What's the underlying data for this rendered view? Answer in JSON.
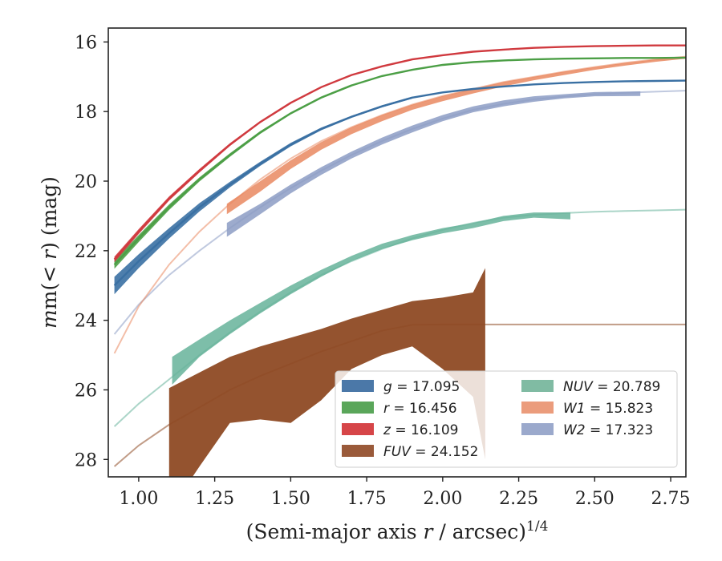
{
  "chart_data": {
    "type": "line",
    "xlabel_main": "(Semi-major axis ",
    "xlabel_var": "r",
    "xlabel_unit": " / arcsec)",
    "xlabel_exp": "1/4",
    "ylabel_left": "m(",
    "ylabel_lt": "<",
    "ylabel_var": "r",
    "ylabel_right": ") (mag)",
    "xlim": [
      0.9,
      2.8
    ],
    "ylim": [
      28.5,
      15.6
    ],
    "y_inverted": true,
    "grid": false,
    "x_ticks": [
      "1.00",
      "1.25",
      "1.50",
      "1.75",
      "2.00",
      "2.25",
      "2.50",
      "2.75"
    ],
    "x_tick_values": [
      1.0,
      1.25,
      1.5,
      1.75,
      2.0,
      2.25,
      2.5,
      2.75
    ],
    "y_ticks": [
      "16",
      "18",
      "20",
      "22",
      "24",
      "26",
      "28"
    ],
    "y_tick_values": [
      16,
      18,
      20,
      22,
      24,
      26,
      28
    ],
    "legend_position": "lower-right",
    "series": [
      {
        "key": "g",
        "var": "g",
        "value": "17.095",
        "color": "#3a70a3",
        "kind": "curve",
        "x": [
          0.92,
          1.0,
          1.1,
          1.2,
          1.3,
          1.4,
          1.5,
          1.6,
          1.7,
          1.8,
          1.9,
          2.0,
          2.1,
          2.2,
          2.3,
          2.4,
          2.5,
          2.6,
          2.7,
          2.8
        ],
        "y": [
          23.0,
          22.3,
          21.5,
          20.75,
          20.1,
          19.5,
          18.95,
          18.5,
          18.15,
          17.85,
          17.6,
          17.45,
          17.35,
          17.28,
          17.22,
          17.18,
          17.15,
          17.13,
          17.12,
          17.11
        ],
        "band_x": [
          0.92,
          1.0,
          1.1,
          1.2,
          1.3,
          1.4,
          1.5,
          1.6,
          1.7,
          1.8,
          1.9
        ],
        "band_half": [
          0.25,
          0.2,
          0.15,
          0.12,
          0.08,
          0.06,
          0.05,
          0.04,
          0.03,
          0.03,
          0.03
        ]
      },
      {
        "key": "r",
        "var": "r",
        "value": "16.456",
        "color": "#4c9f46",
        "kind": "curve",
        "x": [
          0.92,
          1.0,
          1.1,
          1.2,
          1.3,
          1.4,
          1.5,
          1.6,
          1.7,
          1.8,
          1.9,
          2.0,
          2.1,
          2.2,
          2.3,
          2.4,
          2.5,
          2.6,
          2.7,
          2.8
        ],
        "y": [
          22.4,
          21.65,
          20.75,
          19.95,
          19.25,
          18.6,
          18.05,
          17.6,
          17.25,
          16.98,
          16.8,
          16.66,
          16.58,
          16.53,
          16.5,
          16.48,
          16.47,
          16.46,
          16.46,
          16.45
        ],
        "band_x": [
          0.92,
          1.0,
          1.1,
          1.2,
          1.3,
          1.4,
          1.5,
          1.6,
          1.7
        ],
        "band_half": [
          0.12,
          0.1,
          0.08,
          0.06,
          0.05,
          0.04,
          0.03,
          0.03,
          0.03
        ]
      },
      {
        "key": "z",
        "var": "z",
        "value": "16.109",
        "color": "#d03a3f",
        "kind": "curve",
        "x": [
          0.92,
          1.0,
          1.1,
          1.2,
          1.3,
          1.4,
          1.5,
          1.6,
          1.7,
          1.8,
          1.9,
          2.0,
          2.1,
          2.2,
          2.3,
          2.4,
          2.5,
          2.6,
          2.7,
          2.8
        ],
        "y": [
          22.25,
          21.45,
          20.5,
          19.7,
          18.95,
          18.3,
          17.75,
          17.3,
          16.95,
          16.7,
          16.5,
          16.38,
          16.28,
          16.22,
          16.17,
          16.14,
          16.12,
          16.11,
          16.1,
          16.1
        ],
        "band_x": [
          0.92,
          1.0,
          1.1,
          1.2,
          1.3,
          1.4,
          1.5
        ],
        "band_half": [
          0.08,
          0.07,
          0.06,
          0.05,
          0.04,
          0.03,
          0.03
        ]
      },
      {
        "key": "FUV",
        "var": "FUV",
        "value": "24.152",
        "color": "#8e4a24",
        "kind": "band",
        "x": [
          0.92,
          1.0,
          1.1,
          1.2,
          1.3,
          1.4,
          1.5,
          1.6,
          1.7,
          1.8,
          1.9,
          2.0,
          2.2,
          2.4,
          2.6,
          2.8
        ],
        "y": [
          28.2,
          27.6,
          27.0,
          26.5,
          26.0,
          25.6,
          25.25,
          24.9,
          24.6,
          24.3,
          24.13,
          24.12,
          24.12,
          24.12,
          24.12,
          24.12
        ],
        "band_x": [
          1.1,
          1.2,
          1.3,
          1.4,
          1.5,
          1.6,
          1.7,
          1.8,
          1.9,
          2.0,
          2.1,
          2.14
        ],
        "band_upper": [
          25.95,
          25.5,
          25.05,
          24.75,
          24.5,
          24.25,
          23.95,
          23.7,
          23.45,
          23.35,
          23.2,
          22.5
        ],
        "band_lower": [
          29.5,
          28.2,
          26.95,
          26.85,
          26.95,
          26.3,
          25.4,
          25.0,
          24.75,
          25.4,
          26.2,
          28.0
        ]
      },
      {
        "key": "NUV",
        "var": "NUV",
        "value": "20.789",
        "color": "#66b39a",
        "kind": "band",
        "x": [
          0.92,
          1.0,
          1.1,
          1.2,
          1.3,
          1.4,
          1.5,
          1.6,
          1.7,
          1.8,
          1.9,
          2.0,
          2.1,
          2.2,
          2.3,
          2.4,
          2.5,
          2.6,
          2.7,
          2.8
        ],
        "y": [
          27.05,
          26.4,
          25.7,
          25.0,
          24.35,
          23.75,
          23.2,
          22.7,
          22.3,
          21.95,
          21.65,
          21.4,
          21.2,
          21.05,
          20.97,
          20.92,
          20.88,
          20.86,
          20.84,
          20.82
        ],
        "band_x": [
          1.11,
          1.2,
          1.3,
          1.4,
          1.5,
          1.6,
          1.7,
          1.8,
          1.9,
          2.0,
          2.1,
          2.2,
          2.3,
          2.42
        ],
        "band_upper": [
          25.05,
          24.55,
          24.0,
          23.5,
          23.0,
          22.55,
          22.15,
          21.8,
          21.55,
          21.35,
          21.2,
          21.0,
          20.9,
          20.9
        ],
        "band_lower": [
          25.85,
          25.05,
          24.4,
          23.8,
          23.25,
          22.75,
          22.3,
          21.95,
          21.7,
          21.5,
          21.35,
          21.15,
          21.05,
          21.1
        ]
      },
      {
        "key": "W1",
        "var": "W1",
        "value": "15.823",
        "color": "#e98860",
        "kind": "band",
        "x": [
          0.92,
          1.0,
          1.1,
          1.2,
          1.3,
          1.4,
          1.5,
          1.6,
          1.7,
          1.8,
          1.9,
          2.0,
          2.1,
          2.2,
          2.3,
          2.4,
          2.5,
          2.6,
          2.7,
          2.8
        ],
        "y": [
          24.95,
          23.6,
          22.4,
          21.45,
          20.65,
          19.95,
          19.35,
          18.85,
          18.45,
          18.1,
          17.8,
          17.55,
          17.35,
          17.15,
          17.0,
          16.85,
          16.72,
          16.6,
          16.5,
          16.42
        ],
        "band_x": [
          1.29,
          1.4,
          1.5,
          1.6,
          1.7,
          1.8,
          1.9,
          2.0,
          2.1,
          2.2,
          2.3,
          2.4,
          2.5,
          2.6,
          2.7,
          2.8
        ],
        "band_upper": [
          20.65,
          20.0,
          19.4,
          18.88,
          18.45,
          18.1,
          17.8,
          17.55,
          17.35,
          17.15,
          17.0,
          16.85,
          16.72,
          16.6,
          16.5,
          16.42
        ],
        "band_lower": [
          20.95,
          20.3,
          19.65,
          19.1,
          18.65,
          18.28,
          17.95,
          17.7,
          17.48,
          17.28,
          17.1,
          16.95,
          16.8,
          16.68,
          16.57,
          16.48
        ]
      },
      {
        "key": "W2",
        "var": "W2",
        "value": "17.323",
        "color": "#8c9cc4",
        "kind": "band",
        "x": [
          0.92,
          1.0,
          1.1,
          1.2,
          1.3,
          1.4,
          1.5,
          1.6,
          1.7,
          1.8,
          1.9,
          2.0,
          2.1,
          2.2,
          2.3,
          2.4,
          2.5,
          2.6,
          2.7,
          2.8
        ],
        "y": [
          24.4,
          23.55,
          22.7,
          22.0,
          21.35,
          20.75,
          20.2,
          19.7,
          19.25,
          18.85,
          18.5,
          18.2,
          17.95,
          17.78,
          17.65,
          17.57,
          17.5,
          17.46,
          17.43,
          17.4
        ],
        "band_x": [
          1.29,
          1.4,
          1.5,
          1.6,
          1.7,
          1.8,
          1.9,
          2.0,
          2.1,
          2.2,
          2.3,
          2.4,
          2.5,
          2.65
        ],
        "band_upper": [
          21.2,
          20.65,
          20.1,
          19.6,
          19.15,
          18.75,
          18.4,
          18.1,
          17.85,
          17.68,
          17.56,
          17.5,
          17.44,
          17.42
        ],
        "band_lower": [
          21.6,
          20.95,
          20.35,
          19.82,
          19.35,
          18.95,
          18.6,
          18.28,
          18.02,
          17.85,
          17.72,
          17.62,
          17.56,
          17.55
        ]
      }
    ],
    "legend": [
      {
        "var": "g",
        "value": "17.095",
        "color": "#4b78a8"
      },
      {
        "var": "r",
        "value": "16.456",
        "color": "#5aa65a"
      },
      {
        "var": "z",
        "value": "16.109",
        "color": "#d64548"
      },
      {
        "var": "FUV",
        "value": "24.152",
        "color": "#9a5a3a"
      },
      {
        "var": "NUV",
        "value": "20.789",
        "color": "#80bba3"
      },
      {
        "var": "W1",
        "value": "15.823",
        "color": "#eb9c7c"
      },
      {
        "var": "W2",
        "value": "17.323",
        "color": "#9ba9cc"
      }
    ]
  }
}
